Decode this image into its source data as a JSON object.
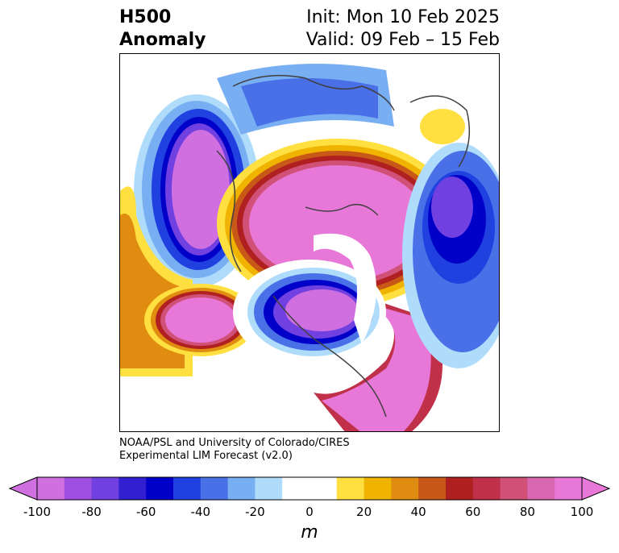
{
  "title": {
    "main": "H500",
    "sub": "Anomaly"
  },
  "init": "Init: Mon 10 Feb 2025",
  "valid": "Valid: 09 Feb – 15 Feb",
  "credit": {
    "line1": "NOAA/PSL and University of Colorado/CIRES",
    "line2": "Experimental LIM Forecast (v2.0)"
  },
  "colorbar": {
    "unit": "m",
    "ticks": [
      "-100",
      "-80",
      "-60",
      "-40",
      "-20",
      "0",
      "20",
      "40",
      "60",
      "80",
      "100"
    ],
    "colors": [
      "#d070e0",
      "#a050e0",
      "#7040e0",
      "#3020d0",
      "#0000c8",
      "#2040e0",
      "#4a70e8",
      "#78aef2",
      "#b0dcfc",
      "#ffffff",
      "#ffffff",
      "#ffe040",
      "#f0b400",
      "#e08c10",
      "#c85818",
      "#b02020",
      "#c03048",
      "#d05078",
      "#d868b0",
      "#e878d8"
    ]
  },
  "map": {
    "projection": "north-polar-stereographic",
    "field": "500 hPa geopotential height anomaly"
  }
}
